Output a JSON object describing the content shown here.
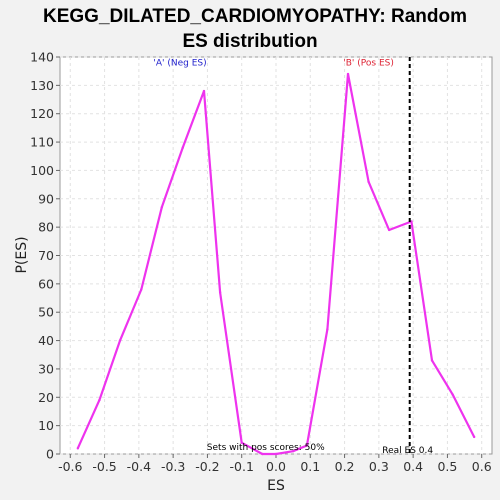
{
  "chart_data": {
    "type": "line",
    "title_lines": [
      "KEGG_DILATED_CARDIOMYOPATHY: Random",
      "ES distribution"
    ],
    "xlabel": "ES",
    "ylabel": "P(ES)",
    "xlim": [
      -0.63,
      0.63
    ],
    "ylim": [
      0,
      140
    ],
    "xticks": [
      -0.6,
      -0.5,
      -0.4,
      -0.3,
      -0.2,
      -0.1,
      0.0,
      0.1,
      0.2,
      0.3,
      0.4,
      0.5,
      0.6
    ],
    "xtick_labels": [
      "-0.6",
      "-0.5",
      "-0.4",
      "-0.3",
      "-0.2",
      "-0.1",
      "0.0",
      "0.1",
      "0.2",
      "0.3",
      "0.4",
      "0.5",
      "0.6"
    ],
    "yticks": [
      0,
      10,
      20,
      30,
      40,
      50,
      60,
      70,
      80,
      90,
      100,
      110,
      120,
      130,
      140
    ],
    "grid": true,
    "series": [
      {
        "color": "#ee33ee",
        "x": [
          -0.578,
          -0.515,
          -0.455,
          -0.393,
          -0.333,
          -0.272,
          -0.21,
          -0.163,
          -0.1,
          -0.04,
          0.0,
          0.05,
          0.09,
          0.15,
          0.21,
          0.27,
          0.33,
          0.395,
          0.455,
          0.515,
          0.578
        ],
        "y": [
          2,
          19,
          40,
          58,
          87,
          108,
          128,
          57,
          4,
          0,
          0,
          1,
          3,
          44,
          134,
          96,
          79,
          82,
          33,
          21,
          6
        ]
      }
    ],
    "real_es": {
      "x": 0.39,
      "color": "#000000",
      "label": "Real ES 0.4"
    },
    "annotations": [
      {
        "text": "'A' (Neg ES)",
        "x": -0.28,
        "y": 137,
        "color": "#2222cc"
      },
      {
        "text": "'B' (Pos ES)",
        "x": 0.27,
        "y": 137,
        "color": "#dd2233"
      },
      {
        "text": "Sets with pos scores: 50%",
        "x": -0.03,
        "y": 1.4,
        "color": "#000000"
      }
    ]
  }
}
